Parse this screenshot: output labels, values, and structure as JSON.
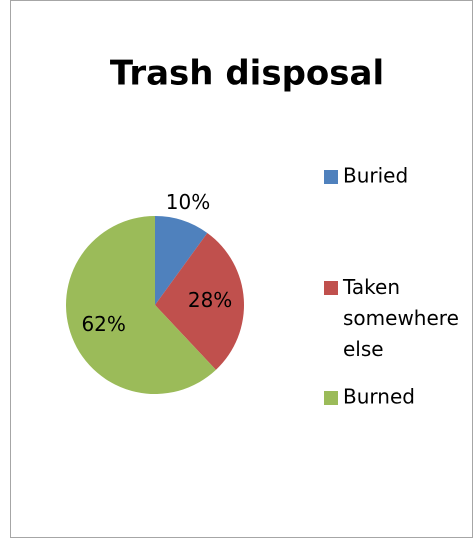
{
  "chart_data": {
    "type": "pie",
    "title": "Trash disposal",
    "categories": [
      "Buried",
      "Taken somewhere else",
      "Burned"
    ],
    "values": [
      10,
      28,
      62
    ],
    "value_labels": [
      "10%",
      "28%",
      "62%"
    ],
    "colors": [
      "#4f81bd",
      "#c0504d",
      "#9bbb59"
    ],
    "legend": "right"
  }
}
